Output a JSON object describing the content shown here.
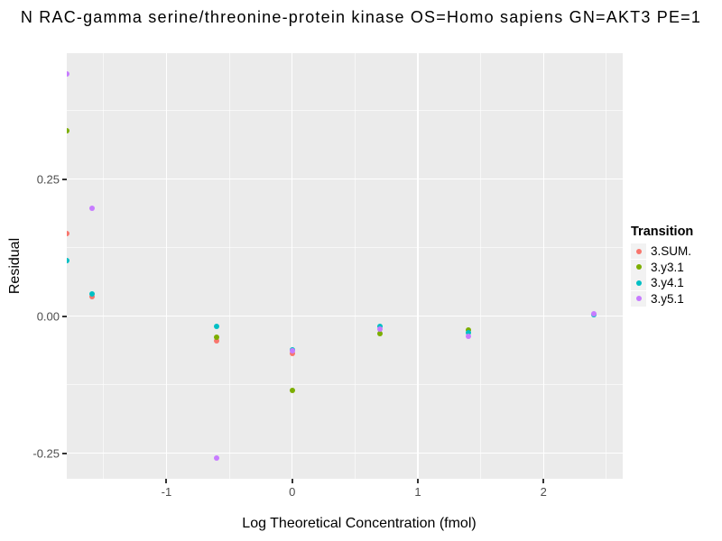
{
  "colors": {
    "panel_bg": "#EBEBEB",
    "gridline": "#FFFFFF",
    "tick_mark": "#333333",
    "tick_label": "#4D4D4D",
    "text": "#000000",
    "legend_key_bg": "#F2F2F2"
  },
  "chart_data": {
    "type": "scatter",
    "title": "N RAC-gamma serine/threonine-protein kinase OS=Homo sapiens GN=AKT3 PE=1",
    "xlabel": "Log Theoretical Concentration (fmol)",
    "ylabel": "Residual",
    "xlim": [
      -1.7925,
      2.6296
    ],
    "ylim": [
      -0.2966,
      0.4797
    ],
    "grid": true,
    "legend_position": "right",
    "legend_title": "Transition",
    "x_major_ticks": [
      -1,
      0,
      1,
      2
    ],
    "x_tick_labels": [
      "-1",
      "0",
      "1",
      "2"
    ],
    "x_minor_ticks": [
      -1.5,
      -0.5,
      0.5,
      1.5,
      2.5
    ],
    "y_major_ticks": [
      0.25,
      0.0,
      -0.25
    ],
    "y_tick_labels": [
      "0.25",
      "0.00",
      "-0.25"
    ],
    "y_minor_ticks": [
      0.375,
      0.125,
      -0.125
    ],
    "series": [
      {
        "name": "3.SUM.",
        "color": "#F8766D",
        "points": [
          [
            -1.79,
            0.151
          ],
          [
            -1.59,
            0.036
          ],
          [
            -0.6,
            -0.045
          ],
          [
            0.0,
            -0.068
          ]
        ]
      },
      {
        "name": "3.y3.1",
        "color": "#7CAE00",
        "points": [
          [
            -1.79,
            0.338
          ],
          [
            -0.6,
            -0.038
          ],
          [
            0.0,
            -0.135
          ],
          [
            0.7,
            -0.031
          ],
          [
            1.4,
            -0.026
          ]
        ]
      },
      {
        "name": "3.y4.1",
        "color": "#00BFC4",
        "points": [
          [
            -1.79,
            0.102
          ],
          [
            -1.59,
            0.041
          ],
          [
            -0.6,
            -0.019
          ],
          [
            0.0,
            -0.061
          ],
          [
            0.7,
            -0.018
          ],
          [
            1.4,
            -0.03
          ],
          [
            2.4,
            0.003
          ]
        ]
      },
      {
        "name": "3.y5.1",
        "color": "#C77CFF",
        "points": [
          [
            -1.79,
            0.442
          ],
          [
            -1.59,
            0.196
          ],
          [
            -0.6,
            -0.259
          ],
          [
            0.0,
            -0.063
          ],
          [
            0.7,
            -0.023
          ],
          [
            1.4,
            -0.036
          ],
          [
            2.4,
            0.004
          ]
        ]
      }
    ]
  }
}
